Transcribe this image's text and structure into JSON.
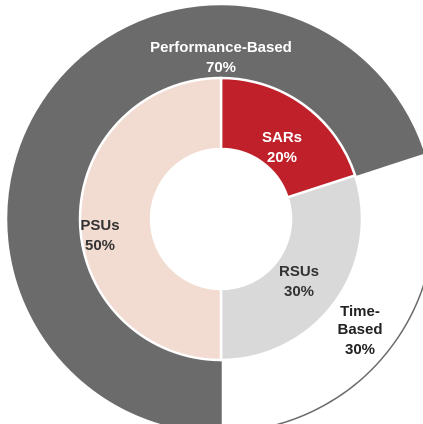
{
  "chart_data": {
    "type": "nested-donut",
    "outer": {
      "categories": [
        "Performance-Based",
        "Time-Based"
      ],
      "values": [
        70,
        30
      ],
      "value_labels": [
        "70%",
        "30%"
      ],
      "colors": [
        "#6b6b6b",
        "#ffffff"
      ]
    },
    "inner": {
      "categories": [
        "SARs",
        "RSUs",
        "PSUs"
      ],
      "values": [
        20,
        30,
        50
      ],
      "value_labels": [
        "20%",
        "30%",
        "50%"
      ],
      "colors": [
        "#c0202a",
        "#d9d9d9",
        "#f2dbd1"
      ]
    }
  }
}
